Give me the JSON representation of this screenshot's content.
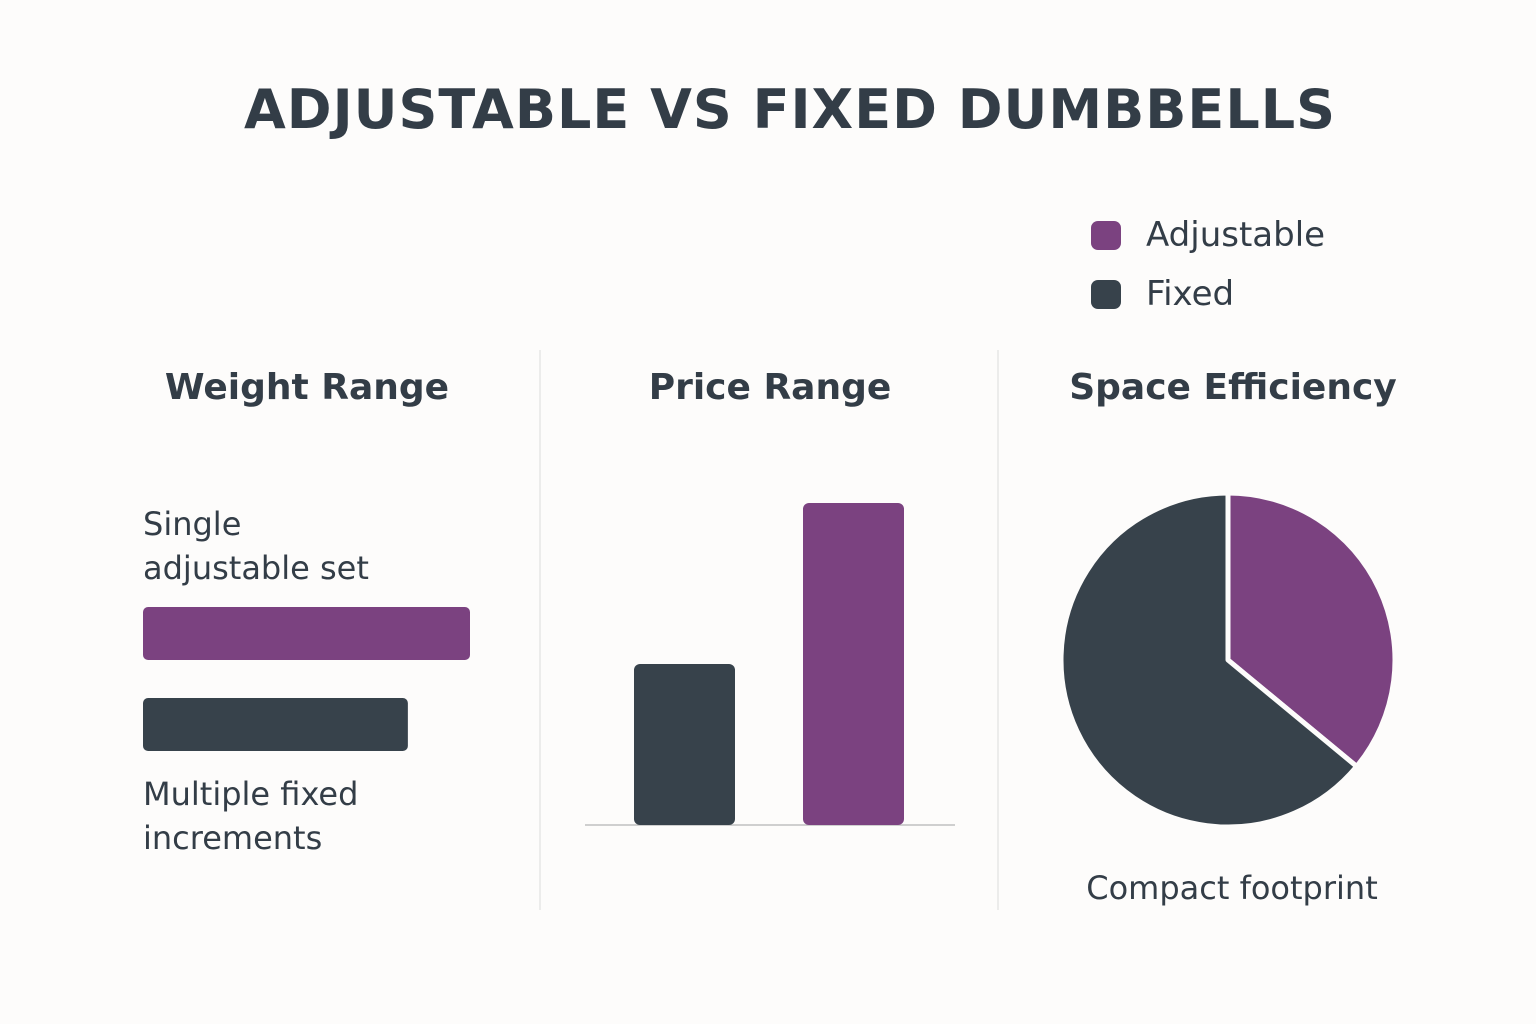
{
  "title": "ADJUSTABLE VS FIXED DUMBBELLS",
  "legend": {
    "items": [
      {
        "name": "Adjustable",
        "color": "#7b4280"
      },
      {
        "name": "Fixed",
        "color": "#37424b"
      }
    ]
  },
  "chart_data": [
    {
      "type": "hbar",
      "title": "Weight Range",
      "categories": [
        "Single adjustable set",
        "Multiple fixed increments"
      ],
      "values": [
        100,
        81
      ],
      "colors": [
        "#7b4280",
        "#37424b"
      ],
      "xlim": [
        0,
        100
      ]
    },
    {
      "type": "bar",
      "title": "Price Range",
      "categories": [
        null,
        null
      ],
      "values": [
        50,
        100
      ],
      "colors": [
        "#37424b",
        "#7b4280"
      ],
      "ylim": [
        0,
        100
      ]
    },
    {
      "type": "pie",
      "title": "Space Efficiency",
      "values": [
        36,
        64
      ],
      "colors": [
        "#7b4280",
        "#37424b"
      ],
      "annotation": "Compact footprint"
    }
  ]
}
